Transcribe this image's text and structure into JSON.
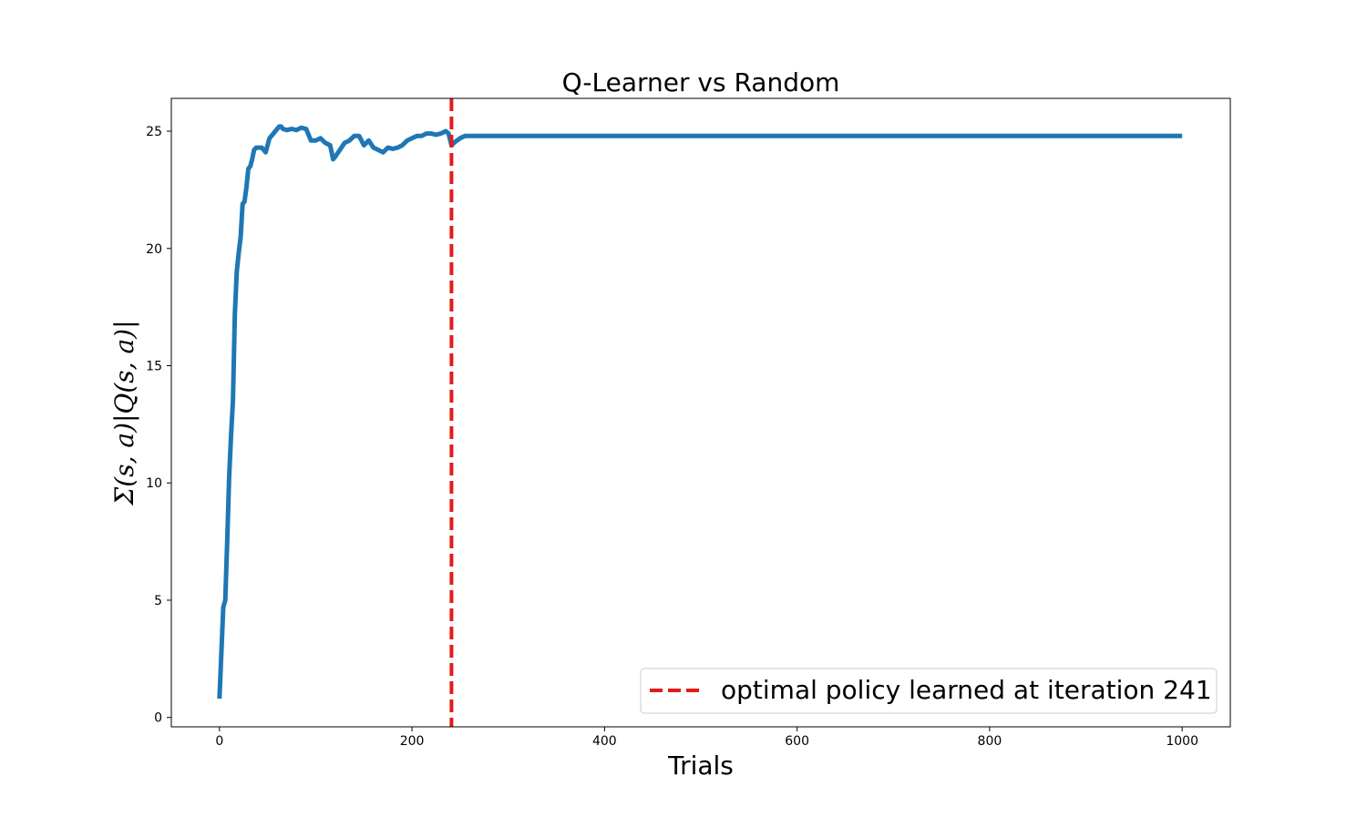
{
  "chart_data": {
    "type": "line",
    "title": "Q-Learner vs Random",
    "xlabel": "Trials",
    "ylabel": "Σ(s, a)|Q(s, a)|",
    "xlim": [
      -50,
      1050
    ],
    "ylim": [
      -0.4,
      26.4
    ],
    "xticks": [
      0,
      200,
      400,
      600,
      800,
      1000
    ],
    "yticks": [
      0,
      5,
      10,
      15,
      20,
      25
    ],
    "grid": false,
    "legend_position": "lower-right",
    "series": [
      {
        "values_x": [
          0,
          4,
          6,
          8,
          10,
          12,
          14,
          16,
          18,
          20,
          22,
          24,
          26,
          28,
          30,
          32,
          34,
          36,
          38,
          40,
          44,
          48,
          52,
          56,
          60,
          62,
          64,
          66,
          70,
          75,
          80,
          85,
          90,
          95,
          100,
          105,
          110,
          115,
          118,
          120,
          125,
          130,
          135,
          140,
          145,
          150,
          155,
          160,
          165,
          170,
          175,
          180,
          185,
          190,
          195,
          200,
          205,
          210,
          215,
          220,
          225,
          230,
          235,
          238,
          241,
          245,
          250,
          255,
          260,
          270,
          300,
          400,
          500,
          600,
          700,
          800,
          900,
          1000
        ],
        "values_y": [
          0.8,
          4.7,
          5.0,
          7.5,
          10.2,
          12.0,
          13.5,
          17.2,
          19.0,
          19.8,
          20.5,
          21.9,
          22.0,
          22.6,
          23.4,
          23.5,
          23.8,
          24.2,
          24.3,
          24.3,
          24.3,
          24.1,
          24.7,
          24.9,
          25.1,
          25.2,
          25.2,
          25.1,
          25.05,
          25.1,
          25.05,
          25.15,
          25.1,
          24.6,
          24.6,
          24.7,
          24.5,
          24.4,
          23.8,
          23.9,
          24.2,
          24.5,
          24.6,
          24.8,
          24.8,
          24.4,
          24.6,
          24.3,
          24.2,
          24.1,
          24.3,
          24.25,
          24.3,
          24.4,
          24.6,
          24.7,
          24.8,
          24.8,
          24.9,
          24.9,
          24.85,
          24.9,
          25.0,
          24.9,
          24.4,
          24.55,
          24.7,
          24.8,
          24.8,
          24.8,
          24.8,
          24.8,
          24.8,
          24.8,
          24.8,
          24.8,
          24.8,
          24.8
        ],
        "color": "#1f77b4"
      }
    ],
    "reference_line": {
      "orientation": "vertical",
      "x": 241,
      "label": "optimal policy learned at iteration 241",
      "color": "#e41a1c",
      "style": "dashed"
    }
  }
}
